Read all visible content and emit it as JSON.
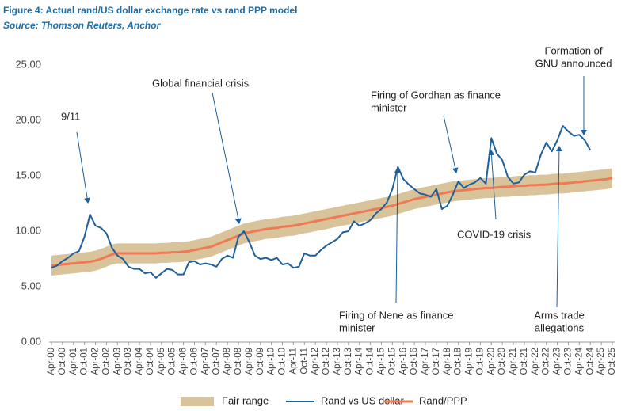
{
  "chart_data": {
    "type": "line",
    "title": "Figure 4: Actual rand/US dollar exchange rate vs rand PPP model",
    "subtitle": "Source: Thomson Reuters, Anchor",
    "categories": [
      "Apr-00",
      null,
      "Oct-00",
      null,
      "Apr-01",
      null,
      "Oct-01",
      null,
      "Apr-02",
      null,
      "Oct-02",
      null,
      "Apr-03",
      null,
      "Oct-03",
      null,
      "Apr-04",
      null,
      "Oct-04",
      null,
      "Apr-05",
      null,
      "Oct-05",
      null,
      "Apr-06",
      null,
      "Oct-06",
      null,
      "Apr-07",
      null,
      "Oct-07",
      null,
      "Apr-08",
      null,
      "Oct-08",
      null,
      "Apr-09",
      null,
      "Oct-09",
      null,
      "Apr-10",
      null,
      "Oct-10",
      null,
      "Apr-11",
      null,
      "Oct-11",
      null,
      "Apr-12",
      null,
      "Oct-12",
      null,
      "Apr-13",
      null,
      "Oct-13",
      null,
      "Apr-14",
      null,
      "Oct-14",
      null,
      "Apr-15",
      null,
      "Oct-15",
      null,
      "Apr-16",
      null,
      "Oct-16",
      null,
      "Apr-17",
      null,
      "Oct-17",
      null,
      "Apr-18",
      null,
      "Oct-18",
      null,
      "Apr-19",
      null,
      "Oct-19",
      null,
      "Apr-20",
      null,
      "Oct-20",
      null,
      "Apr-21",
      null,
      "Oct-21",
      null,
      "Apr-22",
      null,
      "Oct-22",
      null,
      "Apr-23",
      null,
      "Oct-23",
      null,
      "Apr-24",
      null,
      "Oct-24",
      null,
      "Apr-25",
      null,
      "Oct-25"
    ],
    "band": {
      "name": "Fair range",
      "color": "#d9c39a",
      "low": [
        6.0,
        6.05,
        6.1,
        6.15,
        6.2,
        6.25,
        6.3,
        6.35,
        6.45,
        6.6,
        6.8,
        7.0,
        7.1,
        7.1,
        7.1,
        7.1,
        7.1,
        7.1,
        7.1,
        7.1,
        7.15,
        7.15,
        7.2,
        7.2,
        7.25,
        7.3,
        7.4,
        7.5,
        7.6,
        7.7,
        7.9,
        8.1,
        8.3,
        8.5,
        8.7,
        8.9,
        9.0,
        9.1,
        9.2,
        9.3,
        9.35,
        9.4,
        9.5,
        9.55,
        9.6,
        9.7,
        9.8,
        9.9,
        10.0,
        10.1,
        10.2,
        10.3,
        10.4,
        10.5,
        10.6,
        10.7,
        10.8,
        10.9,
        11.0,
        11.1,
        11.2,
        11.3,
        11.4,
        11.55,
        11.7,
        11.85,
        12.0,
        12.1,
        12.2,
        12.3,
        12.4,
        12.5,
        12.6,
        12.7,
        12.75,
        12.8,
        12.85,
        12.9,
        12.95,
        13.0,
        13.0,
        13.05,
        13.1,
        13.1,
        13.15,
        13.2,
        13.2,
        13.25,
        13.25,
        13.3,
        13.3,
        13.35,
        13.4,
        13.4,
        13.45,
        13.5,
        13.55,
        13.6,
        13.65,
        13.7,
        13.75,
        13.8,
        13.9
      ],
      "high": [
        7.8,
        7.85,
        7.9,
        7.95,
        8.0,
        8.05,
        8.1,
        8.15,
        8.25,
        8.4,
        8.6,
        8.8,
        8.9,
        8.9,
        8.9,
        8.9,
        8.9,
        8.9,
        8.9,
        8.9,
        8.95,
        8.95,
        9.0,
        9.0,
        9.05,
        9.1,
        9.2,
        9.3,
        9.4,
        9.5,
        9.7,
        9.9,
        10.1,
        10.3,
        10.5,
        10.7,
        10.8,
        10.9,
        11.0,
        11.1,
        11.15,
        11.2,
        11.3,
        11.35,
        11.4,
        11.5,
        11.6,
        11.7,
        11.8,
        11.9,
        12.0,
        12.1,
        12.2,
        12.3,
        12.4,
        12.5,
        12.6,
        12.7,
        12.8,
        12.9,
        13.0,
        13.1,
        13.2,
        13.35,
        13.5,
        13.65,
        13.8,
        13.9,
        14.0,
        14.1,
        14.2,
        14.3,
        14.4,
        14.5,
        14.55,
        14.6,
        14.65,
        14.7,
        14.75,
        14.8,
        14.8,
        14.85,
        14.9,
        14.9,
        14.95,
        15.0,
        15.0,
        15.05,
        15.05,
        15.1,
        15.1,
        15.15,
        15.2,
        15.2,
        15.25,
        15.3,
        15.35,
        15.4,
        15.45,
        15.5,
        15.55,
        15.6,
        15.7
      ]
    },
    "series": [
      {
        "name": "Rand vs US dollar",
        "color": "#1f5f9a",
        "values": [
          6.7,
          6.9,
          7.3,
          7.6,
          8.0,
          8.2,
          9.5,
          11.5,
          10.5,
          10.3,
          9.8,
          8.5,
          7.8,
          7.5,
          6.8,
          6.6,
          6.6,
          6.2,
          6.3,
          5.8,
          6.2,
          6.6,
          6.5,
          6.1,
          6.1,
          7.2,
          7.3,
          7.0,
          7.1,
          7.0,
          6.8,
          7.5,
          7.8,
          7.6,
          9.5,
          10.0,
          9.0,
          7.8,
          7.5,
          7.6,
          7.4,
          7.6,
          7.0,
          7.1,
          6.7,
          6.8,
          8.0,
          7.8,
          7.8,
          8.3,
          8.7,
          9.0,
          9.3,
          9.9,
          10.0,
          10.9,
          10.5,
          10.7,
          11.0,
          11.6,
          12.0,
          12.6,
          13.8,
          15.8,
          14.7,
          14.2,
          13.8,
          13.4,
          13.3,
          13.1,
          13.8,
          12.0,
          12.3,
          13.3,
          14.5,
          13.9,
          14.2,
          14.4,
          14.8,
          14.3,
          18.4,
          17.0,
          16.4,
          14.9,
          14.3,
          14.4,
          15.1,
          15.4,
          15.3,
          16.9,
          18.0,
          17.2,
          18.2,
          19.5,
          19.0,
          18.6,
          18.7,
          18.2,
          17.3,
          null,
          null,
          null,
          null
        ]
      },
      {
        "name": "Rand/PPP",
        "color": "#ef7a55",
        "values": [
          6.9,
          6.95,
          7.0,
          7.05,
          7.1,
          7.15,
          7.2,
          7.25,
          7.35,
          7.5,
          7.7,
          7.9,
          8.0,
          8.0,
          8.0,
          8.0,
          8.0,
          8.0,
          8.0,
          8.0,
          8.05,
          8.05,
          8.1,
          8.1,
          8.15,
          8.2,
          8.3,
          8.4,
          8.5,
          8.6,
          8.8,
          9.0,
          9.2,
          9.4,
          9.6,
          9.8,
          9.9,
          10.0,
          10.1,
          10.2,
          10.25,
          10.3,
          10.4,
          10.45,
          10.5,
          10.6,
          10.7,
          10.8,
          10.9,
          11.0,
          11.1,
          11.2,
          11.3,
          11.4,
          11.5,
          11.6,
          11.7,
          11.8,
          11.9,
          12.0,
          12.1,
          12.2,
          12.3,
          12.45,
          12.6,
          12.75,
          12.9,
          13.0,
          13.1,
          13.2,
          13.3,
          13.4,
          13.5,
          13.6,
          13.65,
          13.7,
          13.75,
          13.8,
          13.85,
          13.9,
          13.9,
          13.95,
          14.0,
          14.0,
          14.05,
          14.1,
          14.1,
          14.15,
          14.15,
          14.2,
          14.2,
          14.25,
          14.3,
          14.3,
          14.35,
          14.4,
          14.45,
          14.5,
          14.55,
          14.6,
          14.65,
          14.7,
          14.8
        ]
      }
    ],
    "ylim": [
      0,
      25
    ],
    "yticks": [
      {
        "value": 0,
        "label": "0.00"
      },
      {
        "value": 5,
        "label": "5.00"
      },
      {
        "value": 10,
        "label": "10.00"
      },
      {
        "value": 15,
        "label": "15.00"
      },
      {
        "value": 20,
        "label": "20.00"
      },
      {
        "value": 25,
        "label": "25.00"
      }
    ],
    "annotations": [
      [
        "9/11"
      ],
      [
        "Global financial crisis"
      ],
      [
        "Firing of Gordhan as finance",
        "minister"
      ],
      [
        "COVID-19 crisis"
      ],
      [
        "Firing of Nene as finance",
        "minister"
      ],
      [
        "Formation of",
        "GNU announced"
      ],
      [
        "Arms trade",
        "allegations"
      ]
    ]
  }
}
